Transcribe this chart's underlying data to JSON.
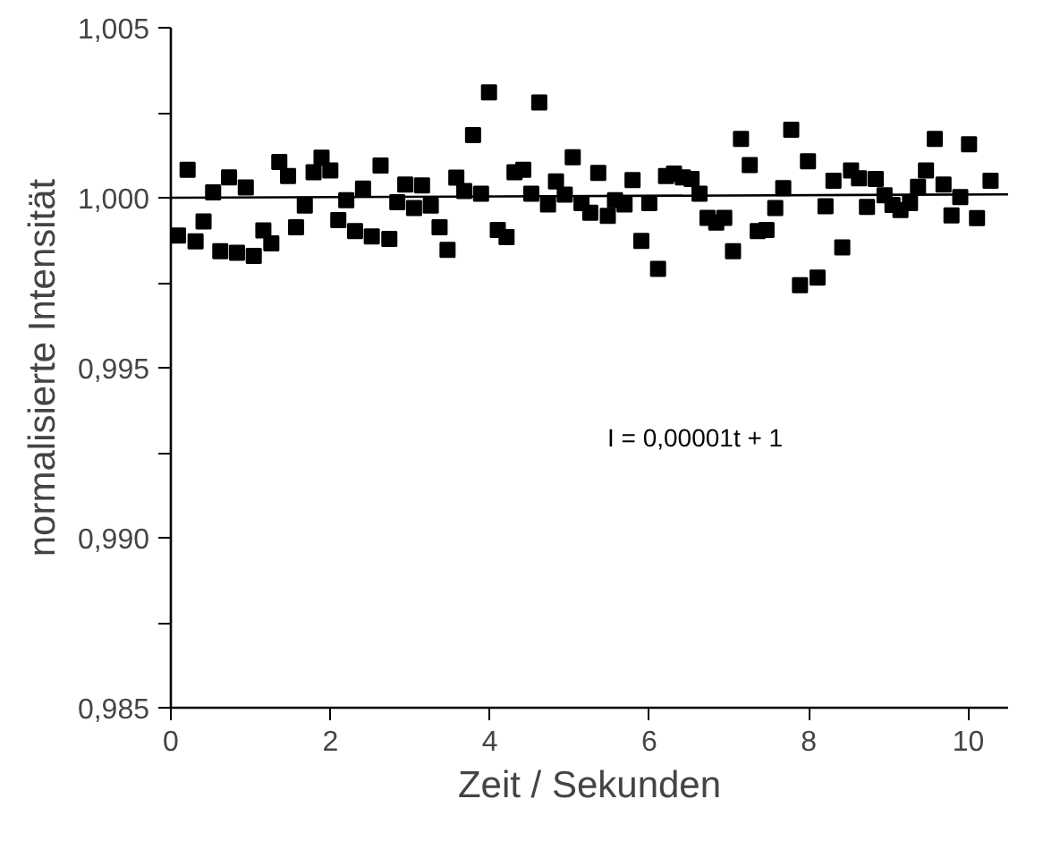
{
  "chart_data": {
    "type": "scatter",
    "xlabel": "Zeit / Sekunden",
    "ylabel": "normalisierte Intensität",
    "xlim": [
      0,
      10.5
    ],
    "ylim": [
      0.985,
      1.005
    ],
    "xticks": [
      0,
      2,
      4,
      6,
      8,
      10
    ],
    "yticks": [
      {
        "value": 0.985,
        "label": "0,985"
      },
      {
        "value": 0.9875,
        "label": null
      },
      {
        "value": 0.99,
        "label": "0,990"
      },
      {
        "value": 0.9925,
        "label": null
      },
      {
        "value": 0.995,
        "label": "0,995"
      },
      {
        "value": 0.9975,
        "label": null
      },
      {
        "value": 1.0,
        "label": "1,000"
      },
      {
        "value": 1.0025,
        "label": null
      },
      {
        "value": 1.005,
        "label": "1,005"
      }
    ],
    "grid": false,
    "marker": "square",
    "annotations": [
      "I = 0,00001t + 1"
    ],
    "series": [
      {
        "color": "#000000",
        "x": [
          0.09,
          0.21,
          0.31,
          0.41,
          0.53,
          0.62,
          0.73,
          0.83,
          0.94,
          1.04,
          1.16,
          1.26,
          1.36,
          1.47,
          1.57,
          1.68,
          1.79,
          1.89,
          2.0,
          2.1,
          2.2,
          2.31,
          2.41,
          2.52,
          2.63,
          2.74,
          2.84,
          2.94,
          3.05,
          3.15,
          3.26,
          3.37,
          3.47,
          3.58,
          3.68,
          3.79,
          3.89,
          3.99,
          4.1,
          4.21,
          4.31,
          4.42,
          4.52,
          4.62,
          4.73,
          4.83,
          4.94,
          5.04,
          5.15,
          5.26,
          5.36,
          5.48,
          5.57,
          5.69,
          5.79,
          5.9,
          6.0,
          6.11,
          6.21,
          6.31,
          6.42,
          6.53,
          6.63,
          6.73,
          6.84,
          6.94,
          7.05,
          7.15,
          7.26,
          7.36,
          7.47,
          7.58,
          7.68,
          7.78,
          7.89,
          7.99,
          8.11,
          8.21,
          8.31,
          8.42,
          8.53,
          8.63,
          8.73,
          8.84,
          8.95,
          9.05,
          9.15,
          9.27,
          9.37,
          9.47,
          9.58,
          9.69,
          9.79,
          9.9,
          10.01,
          10.11,
          10.28
        ],
        "values": [
          0.99889,
          1.00082,
          0.99872,
          0.9993,
          1.00016,
          0.99843,
          1.0006,
          0.99838,
          1.0003,
          0.99829,
          0.99904,
          0.99866,
          1.00105,
          1.00064,
          0.99913,
          0.99977,
          1.00075,
          1.00118,
          1.0008,
          0.99934,
          0.99993,
          0.99902,
          1.00027,
          0.99886,
          1.00095,
          0.99879,
          0.99987,
          1.00039,
          0.9997,
          1.00036,
          0.99977,
          0.99913,
          0.99847,
          1.00059,
          1.0002,
          1.00184,
          1.00012,
          1.0031,
          0.99905,
          0.99884,
          1.00075,
          1.00082,
          1.00012,
          1.0028,
          0.9998,
          1.00048,
          1.00009,
          1.00119,
          0.99984,
          0.99956,
          1.00073,
          0.99947,
          0.99993,
          0.9998,
          1.00052,
          0.99873,
          0.99984,
          0.99791,
          1.00064,
          1.00071,
          1.0006,
          1.00055,
          1.00012,
          0.99941,
          0.99927,
          0.99941,
          0.99843,
          1.00173,
          1.00096,
          0.99902,
          0.99905,
          0.9997,
          1.00028,
          1.002,
          0.99743,
          1.00107,
          0.99765,
          0.99975,
          1.0005,
          0.99854,
          1.0008,
          1.00057,
          0.99973,
          1.00055,
          1.00007,
          0.99979,
          0.99964,
          0.99984,
          1.00032,
          1.0008,
          1.00173,
          1.00039,
          0.99948,
          1.00002,
          1.00157,
          0.9994,
          1.0005
        ]
      },
      {
        "type": "line",
        "marker": "none",
        "color": "#000000",
        "x": [
          0,
          10.5
        ],
        "values": [
          1.0,
          1.0001
        ]
      }
    ]
  }
}
